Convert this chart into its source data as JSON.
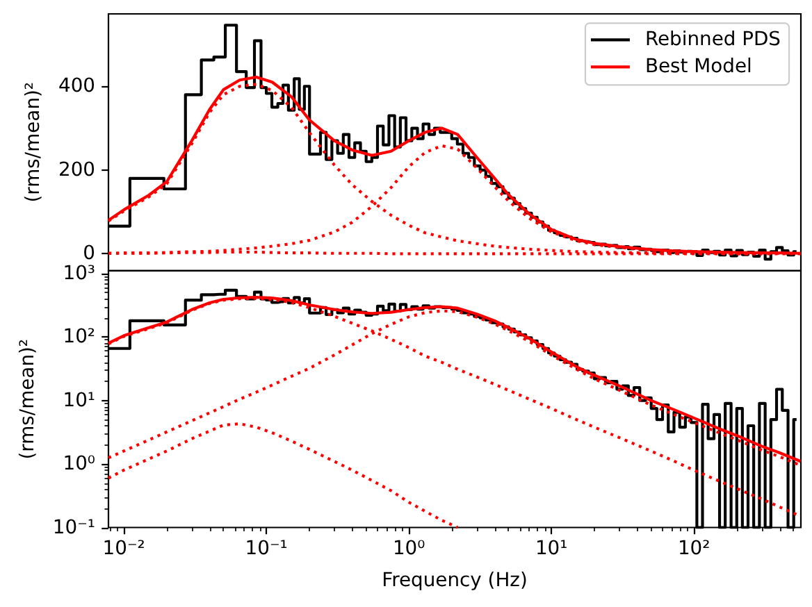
{
  "chart_data": [
    {
      "type": "line",
      "ylabel": "(rms/mean)²",
      "log": "x",
      "xlim": [
        0.0078,
        563
      ],
      "ylim": [
        -40,
        573
      ],
      "yticks": [
        0,
        200,
        400
      ],
      "tick_labels": "y",
      "legend": "top right",
      "x": [
        0.0078,
        0.01,
        0.015,
        0.02,
        0.03,
        0.04,
        0.05,
        0.065,
        0.085,
        0.11,
        0.15,
        0.2,
        0.3,
        0.4,
        0.55,
        0.75,
        1,
        1.3,
        1.7,
        2.2,
        3,
        4,
        5,
        7,
        10,
        15,
        20,
        30,
        50,
        70,
        100,
        150,
        200,
        300,
        400,
        560
      ],
      "series": [
        {
          "name": "Rebinned PDS",
          "type": "step",
          "color": "#000000",
          "x": [
            0.0078,
            0.0156,
            0.0234,
            0.0313,
            0.0391,
            0.0469,
            0.0566,
            0.0673,
            0.0776,
            0.0877,
            0.096,
            0.104,
            0.115,
            0.126,
            0.136,
            0.15,
            0.164,
            0.177,
            0.193,
            0.209,
            0.229,
            0.251,
            0.275,
            0.302,
            0.331,
            0.363,
            0.398,
            0.437,
            0.479,
            0.525,
            0.575,
            0.631,
            0.692,
            0.759,
            0.832,
            0.912,
            1,
            1.1,
            1.2,
            1.32,
            1.45,
            1.58,
            1.74,
            1.91,
            2.09,
            2.29,
            2.51,
            2.75,
            3.02,
            3.31,
            3.63,
            3.98,
            4.37,
            4.79,
            5.25,
            5.75,
            6.31,
            6.92,
            7.59,
            8.32,
            9.12,
            10,
            11,
            12,
            13.2,
            14.5,
            15.8,
            17.4,
            19.1,
            20.9,
            22.9,
            25.1,
            27.5,
            30.2,
            33.1,
            36.3,
            39.8,
            43.7,
            47.9,
            52.5,
            57.5,
            63.1,
            69.2,
            75.9,
            83.2,
            91.2,
            100,
            110,
            120,
            132,
            145,
            158,
            174,
            191,
            209,
            229,
            251,
            275,
            302,
            331,
            363,
            398,
            437,
            479,
            525
          ],
          "values": [
            66,
            180,
            155,
            380,
            463,
            470,
            546,
            435,
            397,
            509,
            397,
            383,
            350,
            359,
            403,
            343,
            418,
            345,
            400,
            238,
            238,
            290,
            225,
            270,
            240,
            285,
            230,
            265,
            245,
            220,
            230,
            305,
            260,
            330,
            255,
            325,
            270,
            300,
            275,
            310,
            285,
            300,
            290,
            290,
            275,
            262,
            240,
            230,
            210,
            200,
            185,
            168,
            160,
            145,
            133,
            120,
            108,
            97,
            87,
            76,
            66,
            56,
            50,
            44,
            40,
            37,
            31,
            29,
            27,
            22,
            23,
            19,
            20,
            15,
            17,
            12,
            16,
            10,
            11,
            8,
            5,
            9,
            3,
            7,
            4,
            6,
            5,
            -4,
            9,
            3,
            6,
            -3,
            9,
            -5,
            8,
            -2,
            4,
            -6,
            9,
            -13,
            5,
            15,
            7,
            -3,
            5
          ]
        },
        {
          "name": "Best Model",
          "color": "#ff0000",
          "values": [
            80,
            105,
            140,
            172,
            270,
            345,
            392,
            415,
            422,
            410,
            375,
            320,
            270,
            248,
            235,
            245,
            270,
            290,
            300,
            285,
            230,
            180,
            141,
            95,
            58,
            34,
            25,
            17,
            10,
            7,
            5,
            4,
            3,
            2,
            2,
            1
          ]
        },
        {
          "color": "#ff0000",
          "line_style": "dotted",
          "values": [
            78,
            102,
            136,
            167,
            263,
            338,
            380,
            400,
            405,
            390,
            350,
            290,
            212,
            165,
            125,
            92,
            68,
            50,
            40,
            31,
            24,
            18,
            15,
            11,
            8,
            5,
            4,
            3,
            2,
            1,
            1,
            1,
            0,
            0,
            0,
            0
          ]
        },
        {
          "color": "#ff0000",
          "line_style": "dotted",
          "values": [
            1,
            2,
            2,
            3,
            5,
            6,
            8,
            11,
            14,
            18,
            24,
            32,
            52,
            75,
            113,
            158,
            208,
            242,
            258,
            250,
            205,
            160,
            126,
            85,
            52,
            31,
            22,
            15,
            9,
            6,
            5,
            3,
            2,
            2,
            1,
            1
          ]
        },
        {
          "color": "#ff0000",
          "line_style": "dotted",
          "x": [
            0.0078,
            0.01,
            0.015,
            0.02,
            0.03,
            0.04,
            0.05,
            0.065,
            0.085,
            0.11,
            0.15,
            0.2,
            0.3,
            0.4,
            0.55,
            0.75,
            1,
            1.3,
            1.7,
            2.2,
            3,
            4,
            5,
            7,
            10,
            15,
            20,
            30,
            50,
            70,
            100,
            150,
            200,
            300
          ],
          "values": [
            1,
            1,
            1,
            2,
            3,
            3,
            4,
            4,
            4,
            3,
            2,
            2,
            1,
            1,
            1,
            0,
            0,
            0,
            0,
            0,
            0,
            0,
            0,
            0,
            0,
            0,
            0,
            0,
            0,
            0,
            0,
            0,
            0,
            0
          ]
        }
      ]
    },
    {
      "type": "line",
      "xlabel": "Frequency (Hz)",
      "ylabel": "(rms/mean)²",
      "log": "xy",
      "xlim": [
        0.0078,
        563
      ],
      "xticks": [
        {
          "value": 0.01,
          "label": "10⁻²"
        },
        {
          "value": 0.1,
          "label": "10⁻¹"
        },
        {
          "value": 1,
          "label": "10⁰"
        },
        {
          "value": 10,
          "label": "10¹"
        },
        {
          "value": 100,
          "label": "10²"
        },
        {
          "value": 0.008,
          "label": null
        },
        {
          "value": 0.009,
          "label": null
        },
        {
          "value": 0.02,
          "label": null
        },
        {
          "value": 0.03,
          "label": null
        },
        {
          "value": 0.04,
          "label": null
        },
        {
          "value": 0.05,
          "label": null
        },
        {
          "value": 0.06,
          "label": null
        },
        {
          "value": 0.07,
          "label": null
        },
        {
          "value": 0.08,
          "label": null
        },
        {
          "value": 0.09,
          "label": null
        },
        {
          "value": 0.2,
          "label": null
        },
        {
          "value": 0.3,
          "label": null
        },
        {
          "value": 0.4,
          "label": null
        },
        {
          "value": 0.5,
          "label": null
        },
        {
          "value": 0.6,
          "label": null
        },
        {
          "value": 0.7,
          "label": null
        },
        {
          "value": 0.8,
          "label": null
        },
        {
          "value": 0.9,
          "label": null
        },
        {
          "value": 2,
          "label": null
        },
        {
          "value": 3,
          "label": null
        },
        {
          "value": 4,
          "label": null
        },
        {
          "value": 5,
          "label": null
        },
        {
          "value": 6,
          "label": null
        },
        {
          "value": 7,
          "label": null
        },
        {
          "value": 8,
          "label": null
        },
        {
          "value": 9,
          "label": null
        },
        {
          "value": 20,
          "label": null
        },
        {
          "value": 30,
          "label": null
        },
        {
          "value": 40,
          "label": null
        },
        {
          "value": 50,
          "label": null
        },
        {
          "value": 60,
          "label": null
        },
        {
          "value": 70,
          "label": null
        },
        {
          "value": 80,
          "label": null
        },
        {
          "value": 90,
          "label": null
        },
        {
          "value": 200,
          "label": null
        },
        {
          "value": 300,
          "label": null
        },
        {
          "value": 400,
          "label": null
        },
        {
          "value": 500,
          "label": null
        }
      ],
      "ylim": [
        0.1,
        1100
      ],
      "yticks": [
        {
          "value": 0.1,
          "label": "10⁻¹"
        },
        {
          "value": 1,
          "label": "10⁰"
        },
        {
          "value": 10,
          "label": "10¹"
        },
        {
          "value": 100,
          "label": "10²"
        },
        {
          "value": 1000,
          "label": "10³"
        },
        {
          "value": 0.2,
          "label": null
        },
        {
          "value": 0.3,
          "label": null
        },
        {
          "value": 0.4,
          "label": null
        },
        {
          "value": 0.5,
          "label": null
        },
        {
          "value": 0.6,
          "label": null
        },
        {
          "value": 0.7,
          "label": null
        },
        {
          "value": 0.8,
          "label": null
        },
        {
          "value": 0.9,
          "label": null
        },
        {
          "value": 2,
          "label": null
        },
        {
          "value": 3,
          "label": null
        },
        {
          "value": 4,
          "label": null
        },
        {
          "value": 5,
          "label": null
        },
        {
          "value": 6,
          "label": null
        },
        {
          "value": 7,
          "label": null
        },
        {
          "value": 8,
          "label": null
        },
        {
          "value": 9,
          "label": null
        },
        {
          "value": 20,
          "label": null
        },
        {
          "value": 30,
          "label": null
        },
        {
          "value": 40,
          "label": null
        },
        {
          "value": 50,
          "label": null
        },
        {
          "value": 60,
          "label": null
        },
        {
          "value": 70,
          "label": null
        },
        {
          "value": 80,
          "label": null
        },
        {
          "value": 90,
          "label": null
        },
        {
          "value": 200,
          "label": null
        },
        {
          "value": 300,
          "label": null
        },
        {
          "value": 400,
          "label": null
        },
        {
          "value": 500,
          "label": null
        },
        {
          "value": 600,
          "label": null
        },
        {
          "value": 700,
          "label": null
        },
        {
          "value": 800,
          "label": null
        },
        {
          "value": 900,
          "label": null
        }
      ],
      "x": [
        0.0078,
        0.01,
        0.015,
        0.02,
        0.03,
        0.04,
        0.05,
        0.065,
        0.085,
        0.11,
        0.15,
        0.2,
        0.3,
        0.4,
        0.55,
        0.75,
        1,
        1.3,
        1.7,
        2.2,
        3,
        4,
        5,
        7,
        10,
        15,
        20,
        30,
        50,
        70,
        100,
        150,
        200,
        300,
        400,
        560
      ],
      "series": [
        {
          "type": "step",
          "color": "#000000",
          "x": [
            0.0078,
            0.0156,
            0.0234,
            0.0313,
            0.0391,
            0.0469,
            0.0566,
            0.0673,
            0.0776,
            0.0877,
            0.096,
            0.104,
            0.115,
            0.126,
            0.136,
            0.15,
            0.164,
            0.177,
            0.193,
            0.209,
            0.229,
            0.251,
            0.275,
            0.302,
            0.331,
            0.363,
            0.398,
            0.437,
            0.479,
            0.525,
            0.575,
            0.631,
            0.692,
            0.759,
            0.832,
            0.912,
            1,
            1.1,
            1.2,
            1.32,
            1.45,
            1.58,
            1.74,
            1.91,
            2.09,
            2.29,
            2.51,
            2.75,
            3.02,
            3.31,
            3.63,
            3.98,
            4.37,
            4.79,
            5.25,
            5.75,
            6.31,
            6.92,
            7.59,
            8.32,
            9.12,
            10,
            11,
            12,
            13.2,
            14.5,
            15.8,
            17.4,
            19.1,
            20.9,
            22.9,
            25.1,
            27.5,
            30.2,
            33.1,
            36.3,
            39.8,
            43.7,
            47.9,
            52.5,
            57.5,
            63.1,
            69.2,
            75.9,
            83.2,
            91.2,
            100,
            110,
            120,
            132,
            145,
            158,
            174,
            191,
            209,
            229,
            251,
            275,
            302,
            331,
            363,
            398,
            437,
            479,
            525
          ],
          "values": [
            66,
            180,
            155,
            380,
            463,
            470,
            546,
            435,
            397,
            509,
            397,
            383,
            350,
            359,
            403,
            343,
            418,
            345,
            400,
            238,
            238,
            290,
            225,
            270,
            240,
            285,
            230,
            265,
            245,
            220,
            230,
            305,
            260,
            330,
            255,
            325,
            270,
            300,
            275,
            310,
            285,
            300,
            290,
            290,
            275,
            262,
            240,
            230,
            210,
            200,
            185,
            168,
            160,
            145,
            133,
            120,
            108,
            97,
            87,
            76,
            66,
            56,
            50,
            44,
            40,
            37,
            31,
            29,
            27,
            22,
            23,
            19,
            20,
            15,
            17,
            12,
            16,
            10,
            11,
            7.5,
            5,
            8.5,
            3.2,
            6.5,
            3.8,
            5.5,
            4.5,
            0.1,
            8.7,
            2.5,
            6,
            0.1,
            9,
            0.1,
            7.5,
            0.1,
            4,
            0.1,
            9,
            0.1,
            5,
            15,
            7,
            0.1,
            5
          ]
        },
        {
          "color": "#ff0000",
          "values": [
            80,
            105,
            140,
            172,
            270,
            345,
            392,
            415,
            422,
            410,
            375,
            320,
            270,
            248,
            235,
            245,
            270,
            290,
            300,
            285,
            230,
            180,
            141,
            95,
            58,
            34,
            25,
            17,
            10,
            7.4,
            5.3,
            3.6,
            2.8,
            1.9,
            1.5,
            1.1
          ]
        },
        {
          "color": "#ff0000",
          "line_style": "dotted",
          "values": [
            78,
            102,
            136,
            167,
            263,
            338,
            380,
            400,
            405,
            390,
            350,
            290,
            212,
            165,
            125,
            92,
            68,
            50,
            40,
            31,
            23.5,
            18,
            14.5,
            10.5,
            7.5,
            5,
            3.8,
            2.6,
            1.6,
            1.15,
            0.8,
            0.54,
            0.41,
            0.28,
            0.21,
            0.15
          ]
        },
        {
          "color": "#ff0000",
          "line_style": "dotted",
          "values": [
            1.25,
            1.6,
            2.4,
            3.2,
            4.8,
            6.4,
            8,
            10.5,
            13.5,
            17.5,
            24,
            32,
            52,
            75,
            113,
            158,
            208,
            242,
            258,
            250,
            205,
            160,
            126,
            85,
            52,
            31,
            22,
            14.5,
            8.5,
            6.2,
            4.5,
            3.1,
            2.4,
            1.65,
            1.3,
            0.95
          ]
        },
        {
          "color": "#ff0000",
          "line_style": "dotted",
          "values": [
            0.6,
            0.8,
            1.2,
            1.6,
            2.5,
            3.3,
            4.1,
            4.3,
            3.8,
            3.1,
            2.3,
            1.7,
            1.1,
            0.8,
            0.55,
            0.38,
            0.25,
            0.18,
            0.13,
            0.1,
            null,
            null,
            null,
            null,
            null,
            null,
            null,
            null,
            null,
            null,
            null,
            null,
            null,
            null,
            null,
            null
          ]
        }
      ]
    }
  ]
}
